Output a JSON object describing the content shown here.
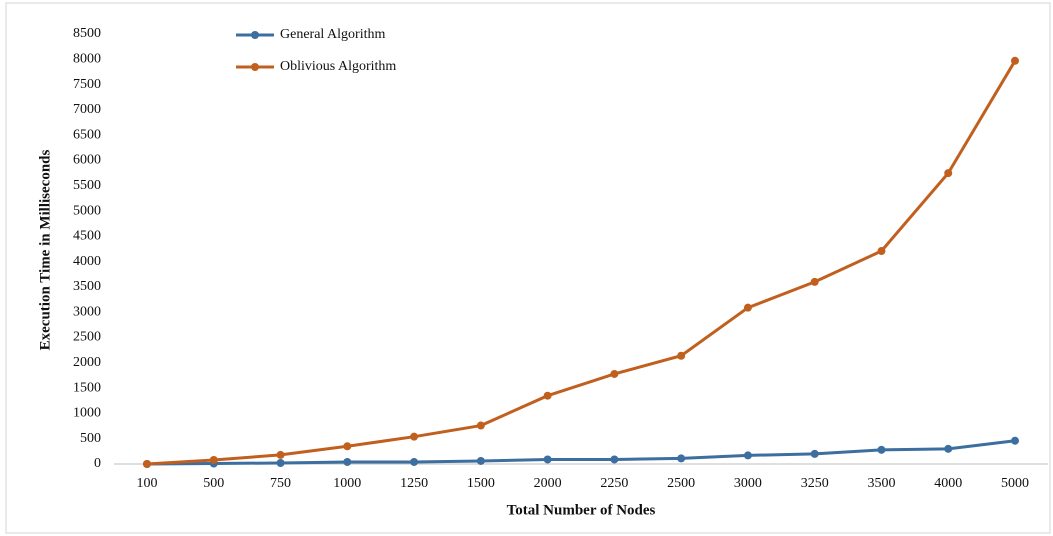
{
  "chart_data": {
    "type": "line",
    "y_label": "Execution Time in Milliseconds",
    "x_label": "Total Number  of Nodes",
    "categories": [
      "100",
      "500",
      "750",
      "1000",
      "1250",
      "1500",
      "2000",
      "2250",
      "2500",
      "3000",
      "3250",
      "3500",
      "4000",
      "5000"
    ],
    "series": [
      {
        "name": "General Algorithm",
        "color": "#3c6e9f",
        "values": [
          0,
          10,
          20,
          40,
          40,
          60,
          90,
          90,
          110,
          170,
          200,
          280,
          300,
          460
        ]
      },
      {
        "name": "Oblivious Algorithm",
        "color": "#c1601e",
        "values": [
          0,
          80,
          180,
          350,
          540,
          760,
          1350,
          1780,
          2140,
          3090,
          3600,
          4210,
          5750,
          7970
        ]
      }
    ],
    "ylim": [
      0,
      8500
    ],
    "yticks": [
      0,
      500,
      1000,
      1500,
      2000,
      2500,
      3000,
      3500,
      4000,
      4500,
      5000,
      5500,
      6000,
      6500,
      7000,
      7500,
      8000,
      8500
    ],
    "grid": false,
    "legend": "top-left"
  }
}
